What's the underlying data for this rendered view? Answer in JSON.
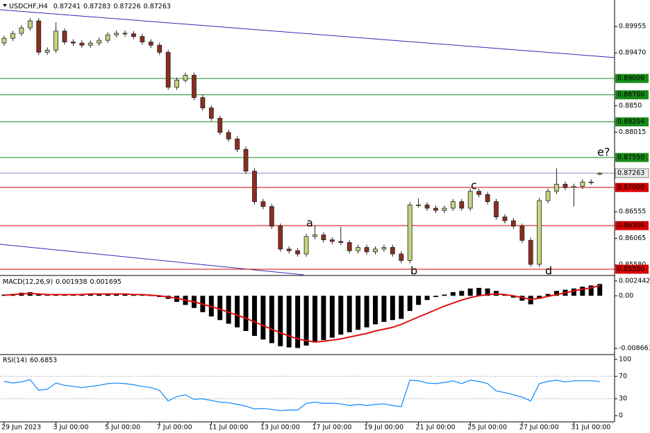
{
  "chart_data": [
    {
      "type": "candlestick",
      "title": "USDCHF,H4",
      "categories": [
        "29 Jun 2023",
        null,
        null,
        null,
        null,
        null,
        "3 Jul 00:00",
        null,
        null,
        null,
        null,
        null,
        "5 Jul 00:00",
        null,
        null,
        null,
        null,
        null,
        "7 Jul 00:00",
        null,
        null,
        null,
        null,
        null,
        "11 Jul 00:00",
        null,
        null,
        null,
        null,
        null,
        "13 Jul 00:00",
        null,
        null,
        null,
        null,
        null,
        "17 Jul 00:00",
        null,
        null,
        null,
        null,
        null,
        "19 Jul 00:00",
        null,
        null,
        null,
        null,
        null,
        "21 Jul 00:00",
        null,
        null,
        null,
        null,
        null,
        "25 Jul 00:00",
        null,
        null,
        null,
        null,
        null,
        "27 Jul 00:00",
        null,
        null,
        null,
        null,
        null,
        "31 Jul 00:00",
        null,
        null,
        null
      ],
      "open": [
        0.8965,
        0.89738,
        0.89827,
        0.89929,
        0.90057,
        0.89482,
        0.8952,
        0.8987,
        0.8967,
        0.8965,
        0.8961,
        0.8965,
        0.897,
        0.898,
        0.8983,
        0.8982,
        0.8977,
        0.8967,
        0.8961,
        0.8948,
        0.8884,
        0.8897,
        0.8906,
        0.8865,
        0.8846,
        0.8827,
        0.8801,
        0.8789,
        0.877,
        0.873,
        0.8674,
        0.8665,
        0.8629,
        0.8587,
        0.8584,
        0.8578,
        0.861,
        0.8613,
        0.8604,
        0.8601,
        0.8599,
        0.8584,
        0.859,
        0.8582,
        0.8587,
        0.859,
        0.8578,
        0.8566,
        0.8668,
        0.8668,
        0.8662,
        0.8658,
        0.8662,
        0.8674,
        0.8662,
        0.8693,
        0.8687,
        0.8674,
        0.8646,
        0.8639,
        0.8629,
        0.8603,
        0.8559,
        0.8676,
        0.8693,
        0.8706,
        0.87,
        0.8702,
        0.871,
        0.87241
      ],
      "high": [
        0.89788,
        0.89877,
        0.89979,
        0.90107,
        0.90107,
        0.8957,
        0.9003,
        0.8992,
        0.8972,
        0.897,
        0.897,
        0.8975,
        0.8985,
        0.8988,
        0.8988,
        0.8987,
        0.8982,
        0.8972,
        0.8966,
        0.8953,
        0.8902,
        0.8911,
        0.8911,
        0.887,
        0.8851,
        0.8832,
        0.8806,
        0.8794,
        0.8775,
        0.8735,
        0.8679,
        0.867,
        0.8634,
        0.8592,
        0.8589,
        0.8615,
        0.863,
        0.8618,
        0.8609,
        0.8628,
        0.8604,
        0.8595,
        0.8595,
        0.8592,
        0.8595,
        0.8595,
        0.8583,
        0.8673,
        0.868,
        0.8673,
        0.8667,
        0.8667,
        0.8679,
        0.8679,
        0.8698,
        0.8698,
        0.8692,
        0.8679,
        0.8651,
        0.8644,
        0.8634,
        0.8608,
        0.8681,
        0.8698,
        0.8735,
        0.8711,
        0.8707,
        0.8715,
        0.8715,
        0.87283
      ],
      "low": [
        0.896,
        0.89688,
        0.89777,
        0.89879,
        0.89432,
        0.89432,
        0.8947,
        0.8962,
        0.896,
        0.8956,
        0.8956,
        0.896,
        0.8965,
        0.8975,
        0.8977,
        0.8972,
        0.8962,
        0.8956,
        0.8943,
        0.8879,
        0.8879,
        0.8892,
        0.886,
        0.8841,
        0.8822,
        0.8796,
        0.8784,
        0.8765,
        0.8725,
        0.8669,
        0.866,
        0.8624,
        0.8582,
        0.8579,
        0.8573,
        0.8573,
        0.8605,
        0.8599,
        0.8596,
        0.8594,
        0.8579,
        0.8579,
        0.8577,
        0.8577,
        0.8582,
        0.8573,
        0.8561,
        0.8561,
        0.8663,
        0.8657,
        0.8653,
        0.8653,
        0.8657,
        0.8657,
        0.8657,
        0.8682,
        0.8669,
        0.8641,
        0.8634,
        0.8624,
        0.8598,
        0.8554,
        0.8554,
        0.8671,
        0.8688,
        0.8695,
        0.8665,
        0.8697,
        0.8705,
        0.87226
      ],
      "close": [
        0.89738,
        0.89827,
        0.89929,
        0.90057,
        0.89482,
        0.8952,
        0.8987,
        0.8967,
        0.8965,
        0.8961,
        0.8965,
        0.897,
        0.898,
        0.8983,
        0.8982,
        0.8977,
        0.8967,
        0.8961,
        0.8948,
        0.8884,
        0.8897,
        0.8906,
        0.8865,
        0.8846,
        0.8827,
        0.8801,
        0.8789,
        0.877,
        0.873,
        0.8674,
        0.8665,
        0.8629,
        0.8587,
        0.8584,
        0.8578,
        0.861,
        0.8613,
        0.8604,
        0.8601,
        0.8599,
        0.8584,
        0.859,
        0.8582,
        0.8587,
        0.859,
        0.8578,
        0.8566,
        0.8668,
        0.8668,
        0.8662,
        0.8658,
        0.8662,
        0.8674,
        0.8662,
        0.8693,
        0.8687,
        0.8674,
        0.8646,
        0.8639,
        0.8629,
        0.8603,
        0.8559,
        0.8676,
        0.8693,
        0.8706,
        0.87,
        0.8702,
        0.871,
        0.871,
        0.87263
      ],
      "bull_color": "#c5d57d",
      "bear_color": "#8b2e1f",
      "ylim": [
        0.85398,
        0.9044
      ],
      "yticks": [
        0.89955,
        {
          "value": 0.8947,
          "label": "0.89470"
        },
        {
          "value": 0.885,
          "label": "0.8850"
        },
        0.88015,
        0.86555,
        0.86065,
        {
          "value": 0.8558,
          "label": "0.85580"
        }
      ],
      "levels": [
        {
          "value": 0.89,
          "label": "0.89000",
          "color": "#1a8a1a"
        },
        {
          "value": 0.887,
          "label": "0.88700",
          "color": "#1a8a1a"
        },
        {
          "value": 0.88204,
          "label": "0.88204",
          "color": "#1a8a1a"
        },
        {
          "value": 0.8755,
          "label": "0.87550",
          "color": "#1a8a1a"
        },
        {
          "value": 0.87,
          "label": "0.87000",
          "color": "#d40000"
        },
        {
          "value": 0.863,
          "label": "0.86300",
          "color": "#d40000"
        },
        {
          "value": 0.855,
          "label": "0.85500",
          "color": "#d40000"
        }
      ],
      "price_line_color": "#8c8cc8",
      "annotations": [
        "a",
        "b",
        "c",
        "d",
        "e?"
      ],
      "annotation_color": "#e01010"
    },
    {
      "type": "macd",
      "title": "MACD(12,26,9)",
      "histogram": [
        0.0002,
        0.0003,
        0.0005,
        0.0006,
        0.0002,
        0.0001,
        0.0003,
        0.0002,
        0.0002,
        0.0002,
        0.0003,
        0.0003,
        0.0004,
        0.0004,
        0.0003,
        0.0002,
        0.0001,
        0.0,
        -0.0002,
        -0.0005,
        -0.001,
        -0.0015,
        -0.002,
        -0.0027,
        -0.0034,
        -0.004,
        -0.0046,
        -0.0052,
        -0.0058,
        -0.0066,
        -0.0072,
        -0.0078,
        -0.0083,
        -0.0085,
        -0.0086,
        -0.0082,
        -0.0077,
        -0.0073,
        -0.0069,
        -0.0064,
        -0.006,
        -0.0056,
        -0.0052,
        -0.0047,
        -0.0043,
        -0.004,
        -0.0038,
        -0.0025,
        -0.0015,
        -0.0007,
        -0.0002,
        0.0002,
        0.0006,
        0.0008,
        0.0012,
        0.0013,
        0.0012,
        0.0008,
        0.0002,
        -0.0003,
        -0.0008,
        -0.0014,
        -0.0005,
        0.0003,
        0.0008,
        0.001,
        0.0012,
        0.0015,
        0.0017,
        0.001938
      ],
      "signal": [
        0.0001,
        0.0002,
        0.0003,
        0.0004,
        0.0003,
        0.0002,
        0.0002,
        0.0002,
        0.0002,
        0.0002,
        0.0003,
        0.0003,
        0.0003,
        0.0003,
        0.0003,
        0.0002,
        0.0002,
        0.0001,
        0.0,
        -0.0002,
        -0.0004,
        -0.0007,
        -0.001,
        -0.0014,
        -0.0018,
        -0.0022,
        -0.0027,
        -0.0032,
        -0.0037,
        -0.0043,
        -0.0049,
        -0.0055,
        -0.0061,
        -0.0066,
        -0.0071,
        -0.0074,
        -0.0076,
        -0.0075,
        -0.0073,
        -0.0071,
        -0.0068,
        -0.0065,
        -0.0062,
        -0.0058,
        -0.0055,
        -0.0052,
        -0.0047,
        -0.0041,
        -0.0035,
        -0.0029,
        -0.0023,
        -0.0017,
        -0.0012,
        -0.0007,
        -0.0003,
        0.0,
        0.0002,
        0.0003,
        0.0002,
        0.0,
        -0.0003,
        -0.0006,
        -0.0004,
        -0.0001,
        0.0002,
        0.0005,
        0.0008,
        0.0011,
        0.0013,
        0.001695
      ],
      "histogram_color": "#000000",
      "signal_color": "#e01010",
      "ylim": [
        -0.00957,
        0.00323
      ],
      "yticks": [
        0.002442,
        {
          "value": 0,
          "label": "0.00"
        },
        -0.008663
      ]
    },
    {
      "type": "rsi",
      "title": "RSI(14)",
      "values": [
        61,
        58,
        60,
        64,
        45,
        47,
        58,
        54,
        52,
        50,
        52,
        54,
        57,
        58,
        57,
        55,
        52,
        50,
        45,
        26,
        34,
        37,
        29,
        30,
        27,
        24,
        23,
        20,
        17,
        12,
        13,
        11,
        9,
        10,
        10,
        22,
        24,
        22,
        22,
        21,
        18,
        20,
        18,
        20,
        21,
        18,
        16,
        63,
        62,
        58,
        57,
        59,
        62,
        57,
        63,
        61,
        57,
        44,
        41,
        37,
        33,
        26,
        57,
        61,
        63,
        60,
        62,
        62,
        62,
        60.6853
      ],
      "color": "#1e90ff",
      "ylim": [
        -9.8,
        107.3
      ],
      "yticks": [
        100,
        70,
        30,
        0
      ]
    }
  ]
}
